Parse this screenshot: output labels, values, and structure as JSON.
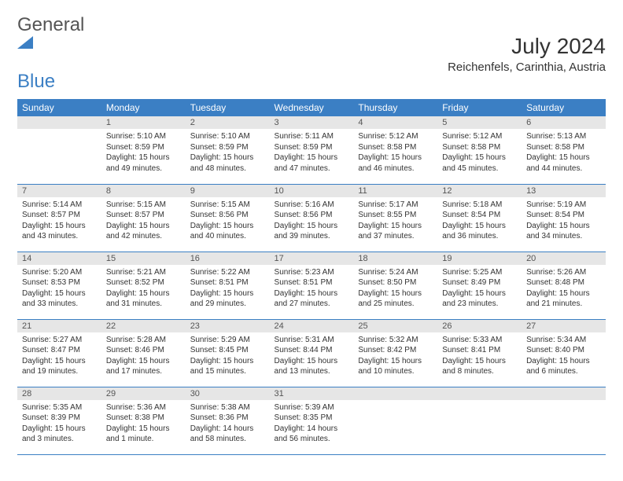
{
  "brand": {
    "name1": "General",
    "name2": "Blue"
  },
  "title": "July 2024",
  "location": "Reichenfels, Carinthia, Austria",
  "colors": {
    "accent": "#3b7fc4",
    "dayNumBg": "#e6e6e6",
    "text": "#333333"
  },
  "dayHeaders": [
    "Sunday",
    "Monday",
    "Tuesday",
    "Wednesday",
    "Thursday",
    "Friday",
    "Saturday"
  ],
  "weeks": [
    [
      {
        "num": "",
        "sunrise": "",
        "sunset": "",
        "daylight": ""
      },
      {
        "num": "1",
        "sunrise": "Sunrise: 5:10 AM",
        "sunset": "Sunset: 8:59 PM",
        "daylight": "Daylight: 15 hours and 49 minutes."
      },
      {
        "num": "2",
        "sunrise": "Sunrise: 5:10 AM",
        "sunset": "Sunset: 8:59 PM",
        "daylight": "Daylight: 15 hours and 48 minutes."
      },
      {
        "num": "3",
        "sunrise": "Sunrise: 5:11 AM",
        "sunset": "Sunset: 8:59 PM",
        "daylight": "Daylight: 15 hours and 47 minutes."
      },
      {
        "num": "4",
        "sunrise": "Sunrise: 5:12 AM",
        "sunset": "Sunset: 8:58 PM",
        "daylight": "Daylight: 15 hours and 46 minutes."
      },
      {
        "num": "5",
        "sunrise": "Sunrise: 5:12 AM",
        "sunset": "Sunset: 8:58 PM",
        "daylight": "Daylight: 15 hours and 45 minutes."
      },
      {
        "num": "6",
        "sunrise": "Sunrise: 5:13 AM",
        "sunset": "Sunset: 8:58 PM",
        "daylight": "Daylight: 15 hours and 44 minutes."
      }
    ],
    [
      {
        "num": "7",
        "sunrise": "Sunrise: 5:14 AM",
        "sunset": "Sunset: 8:57 PM",
        "daylight": "Daylight: 15 hours and 43 minutes."
      },
      {
        "num": "8",
        "sunrise": "Sunrise: 5:15 AM",
        "sunset": "Sunset: 8:57 PM",
        "daylight": "Daylight: 15 hours and 42 minutes."
      },
      {
        "num": "9",
        "sunrise": "Sunrise: 5:15 AM",
        "sunset": "Sunset: 8:56 PM",
        "daylight": "Daylight: 15 hours and 40 minutes."
      },
      {
        "num": "10",
        "sunrise": "Sunrise: 5:16 AM",
        "sunset": "Sunset: 8:56 PM",
        "daylight": "Daylight: 15 hours and 39 minutes."
      },
      {
        "num": "11",
        "sunrise": "Sunrise: 5:17 AM",
        "sunset": "Sunset: 8:55 PM",
        "daylight": "Daylight: 15 hours and 37 minutes."
      },
      {
        "num": "12",
        "sunrise": "Sunrise: 5:18 AM",
        "sunset": "Sunset: 8:54 PM",
        "daylight": "Daylight: 15 hours and 36 minutes."
      },
      {
        "num": "13",
        "sunrise": "Sunrise: 5:19 AM",
        "sunset": "Sunset: 8:54 PM",
        "daylight": "Daylight: 15 hours and 34 minutes."
      }
    ],
    [
      {
        "num": "14",
        "sunrise": "Sunrise: 5:20 AM",
        "sunset": "Sunset: 8:53 PM",
        "daylight": "Daylight: 15 hours and 33 minutes."
      },
      {
        "num": "15",
        "sunrise": "Sunrise: 5:21 AM",
        "sunset": "Sunset: 8:52 PM",
        "daylight": "Daylight: 15 hours and 31 minutes."
      },
      {
        "num": "16",
        "sunrise": "Sunrise: 5:22 AM",
        "sunset": "Sunset: 8:51 PM",
        "daylight": "Daylight: 15 hours and 29 minutes."
      },
      {
        "num": "17",
        "sunrise": "Sunrise: 5:23 AM",
        "sunset": "Sunset: 8:51 PM",
        "daylight": "Daylight: 15 hours and 27 minutes."
      },
      {
        "num": "18",
        "sunrise": "Sunrise: 5:24 AM",
        "sunset": "Sunset: 8:50 PM",
        "daylight": "Daylight: 15 hours and 25 minutes."
      },
      {
        "num": "19",
        "sunrise": "Sunrise: 5:25 AM",
        "sunset": "Sunset: 8:49 PM",
        "daylight": "Daylight: 15 hours and 23 minutes."
      },
      {
        "num": "20",
        "sunrise": "Sunrise: 5:26 AM",
        "sunset": "Sunset: 8:48 PM",
        "daylight": "Daylight: 15 hours and 21 minutes."
      }
    ],
    [
      {
        "num": "21",
        "sunrise": "Sunrise: 5:27 AM",
        "sunset": "Sunset: 8:47 PM",
        "daylight": "Daylight: 15 hours and 19 minutes."
      },
      {
        "num": "22",
        "sunrise": "Sunrise: 5:28 AM",
        "sunset": "Sunset: 8:46 PM",
        "daylight": "Daylight: 15 hours and 17 minutes."
      },
      {
        "num": "23",
        "sunrise": "Sunrise: 5:29 AM",
        "sunset": "Sunset: 8:45 PM",
        "daylight": "Daylight: 15 hours and 15 minutes."
      },
      {
        "num": "24",
        "sunrise": "Sunrise: 5:31 AM",
        "sunset": "Sunset: 8:44 PM",
        "daylight": "Daylight: 15 hours and 13 minutes."
      },
      {
        "num": "25",
        "sunrise": "Sunrise: 5:32 AM",
        "sunset": "Sunset: 8:42 PM",
        "daylight": "Daylight: 15 hours and 10 minutes."
      },
      {
        "num": "26",
        "sunrise": "Sunrise: 5:33 AM",
        "sunset": "Sunset: 8:41 PM",
        "daylight": "Daylight: 15 hours and 8 minutes."
      },
      {
        "num": "27",
        "sunrise": "Sunrise: 5:34 AM",
        "sunset": "Sunset: 8:40 PM",
        "daylight": "Daylight: 15 hours and 6 minutes."
      }
    ],
    [
      {
        "num": "28",
        "sunrise": "Sunrise: 5:35 AM",
        "sunset": "Sunset: 8:39 PM",
        "daylight": "Daylight: 15 hours and 3 minutes."
      },
      {
        "num": "29",
        "sunrise": "Sunrise: 5:36 AM",
        "sunset": "Sunset: 8:38 PM",
        "daylight": "Daylight: 15 hours and 1 minute."
      },
      {
        "num": "30",
        "sunrise": "Sunrise: 5:38 AM",
        "sunset": "Sunset: 8:36 PM",
        "daylight": "Daylight: 14 hours and 58 minutes."
      },
      {
        "num": "31",
        "sunrise": "Sunrise: 5:39 AM",
        "sunset": "Sunset: 8:35 PM",
        "daylight": "Daylight: 14 hours and 56 minutes."
      },
      {
        "num": "",
        "sunrise": "",
        "sunset": "",
        "daylight": ""
      },
      {
        "num": "",
        "sunrise": "",
        "sunset": "",
        "daylight": ""
      },
      {
        "num": "",
        "sunrise": "",
        "sunset": "",
        "daylight": ""
      }
    ]
  ]
}
